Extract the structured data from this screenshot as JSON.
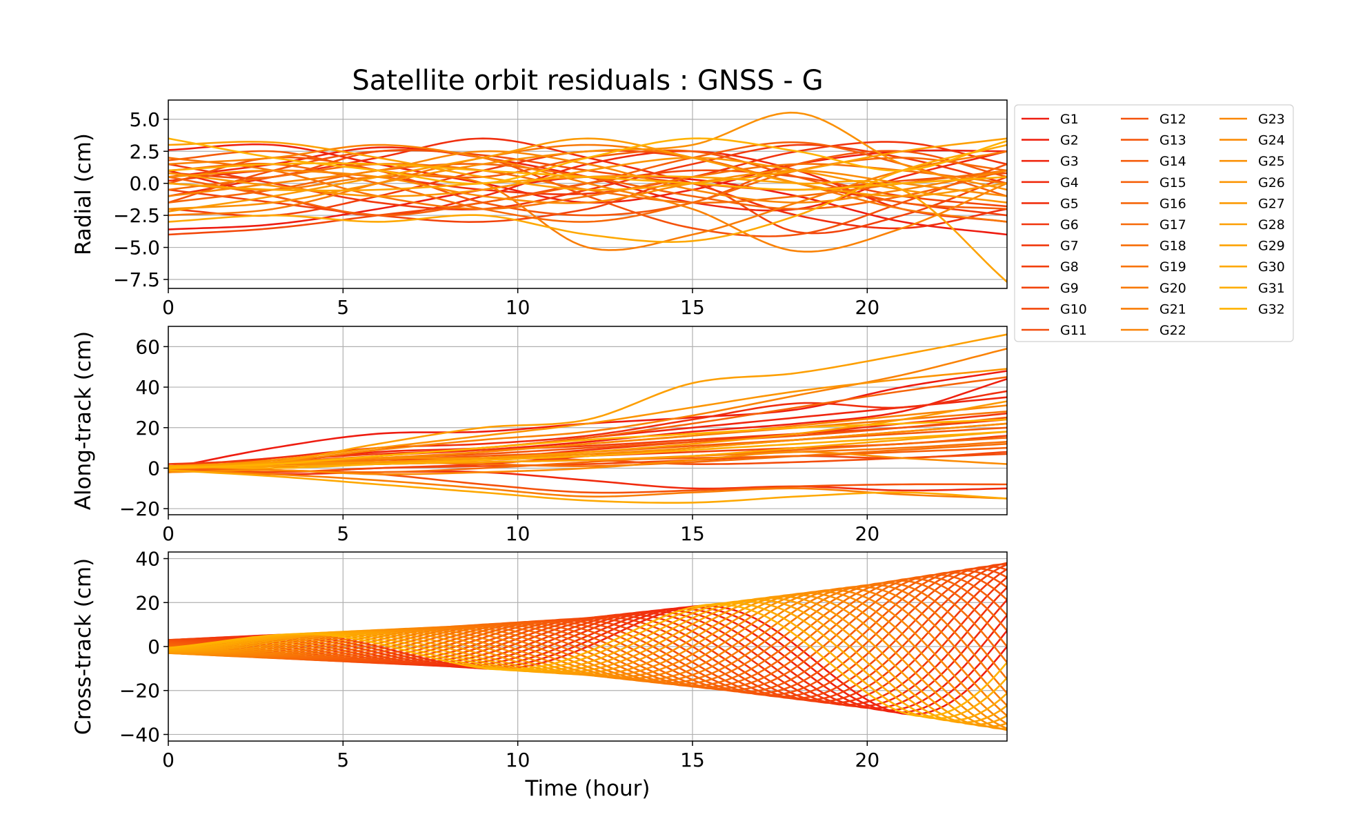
{
  "chart_data": {
    "type": "line",
    "title": "Satellite orbit residuals : GNSS - G",
    "xlabel": "Time (hour)",
    "xlim": [
      0,
      24
    ],
    "xticks": [
      0,
      5,
      10,
      15,
      20
    ],
    "grid": true,
    "legend_position": "right, outside plot",
    "colors": {
      "first": "#ee1c10",
      "last": "#ffb200"
    },
    "satellites": [
      "G1",
      "G2",
      "G3",
      "G4",
      "G5",
      "G6",
      "G7",
      "G8",
      "G9",
      "G10",
      "G11",
      "G12",
      "G13",
      "G14",
      "G15",
      "G16",
      "G17",
      "G18",
      "G19",
      "G20",
      "G21",
      "G22",
      "G23",
      "G24",
      "G25",
      "G26",
      "G27",
      "G28",
      "G29",
      "G30",
      "G31",
      "G32"
    ],
    "panels": [
      {
        "ylabel": "Radial (cm)",
        "ylim": [
          -8.2,
          6.5
        ],
        "yticks": [
          5.0,
          2.5,
          0.0,
          -2.5,
          -5.0,
          -7.5
        ],
        "ytick_labels": [
          "5.0",
          "2.5",
          "0.0",
          "−2.5",
          "−5.0",
          "−7.5"
        ],
        "x": [
          0,
          3,
          6,
          9,
          12,
          15,
          18,
          21,
          24
        ],
        "series": [
          [
            -3.6,
            -3.2,
            -2.0,
            -0.5,
            0.5,
            0.3,
            -1.0,
            -3.0,
            -4.0
          ],
          [
            2.6,
            3.0,
            1.5,
            0.0,
            -1.5,
            -0.5,
            1.5,
            2.5,
            2.5
          ],
          [
            0.5,
            1.5,
            2.8,
            2.0,
            0.5,
            -1.5,
            -2.0,
            0.5,
            2.5
          ],
          [
            1.0,
            -1.0,
            -2.5,
            -1.0,
            1.5,
            2.5,
            1.0,
            -2.0,
            -3.0
          ],
          [
            -1.0,
            0.5,
            2.0,
            3.5,
            2.0,
            0.0,
            -2.5,
            -3.5,
            -2.0
          ],
          [
            0.2,
            1.0,
            0.5,
            -0.5,
            -0.8,
            0.5,
            2.5,
            3.2,
            1.5
          ],
          [
            1.5,
            0.0,
            -1.5,
            -2.0,
            -0.5,
            1.5,
            3.0,
            2.0,
            0.0
          ],
          [
            -2.0,
            -2.5,
            -1.0,
            1.0,
            2.5,
            2.0,
            0.0,
            -1.5,
            -2.5
          ],
          [
            -0.5,
            -1.5,
            -2.5,
            -3.0,
            -2.0,
            0.0,
            -3.8,
            -2.5,
            0.5
          ],
          [
            -4.0,
            -3.5,
            -2.5,
            -1.5,
            0.0,
            1.0,
            0.5,
            -1.0,
            -1.8
          ],
          [
            0.8,
            0.5,
            2.5,
            2.2,
            1.0,
            0.0,
            -0.5,
            0.2,
            0.8
          ],
          [
            -1.5,
            1.0,
            2.5,
            2.0,
            -1.0,
            -3.5,
            -4.0,
            -1.5,
            1.5
          ],
          [
            0.0,
            2.0,
            1.0,
            -1.5,
            -2.5,
            -1.5,
            1.5,
            2.5,
            0.5
          ],
          [
            1.8,
            2.5,
            1.0,
            0.5,
            2.0,
            2.5,
            0.5,
            -1.5,
            -2.0
          ],
          [
            0.5,
            -1.0,
            -2.5,
            -1.5,
            0.0,
            2.0,
            3.2,
            1.5,
            -1.0
          ],
          [
            -1.5,
            -0.5,
            1.0,
            1.5,
            0.5,
            -1.0,
            -2.0,
            -1.0,
            1.0
          ],
          [
            1.0,
            1.5,
            0.0,
            -2.0,
            -3.0,
            -1.5,
            1.0,
            2.0,
            1.0
          ],
          [
            -0.5,
            0.5,
            1.5,
            1.0,
            -0.5,
            -1.5,
            -1.0,
            0.0,
            1.0
          ],
          [
            2.0,
            1.0,
            -1.0,
            -2.0,
            -1.0,
            0.5,
            1.5,
            1.0,
            0.0
          ],
          [
            -2.5,
            -2.0,
            0.0,
            2.0,
            3.0,
            2.0,
            0.0,
            -2.0,
            -3.0
          ],
          [
            0.0,
            -0.5,
            0.5,
            0.0,
            -5.0,
            -4.0,
            -1.5,
            1.0,
            2.5
          ],
          [
            1.5,
            2.0,
            3.0,
            2.0,
            0.0,
            -2.0,
            -5.3,
            -3.5,
            0.0
          ],
          [
            -1.0,
            0.0,
            1.0,
            2.5,
            1.5,
            -0.5,
            -1.5,
            -0.5,
            1.0
          ],
          [
            0.5,
            1.0,
            0.5,
            -1.0,
            -1.5,
            0.0,
            1.0,
            0.0,
            -1.0
          ],
          [
            -2.0,
            -1.5,
            0.0,
            1.5,
            2.5,
            3.0,
            5.5,
            1.5,
            -0.5
          ],
          [
            0.8,
            -0.2,
            -1.0,
            -0.5,
            1.0,
            2.0,
            1.0,
            -0.5,
            -1.5
          ],
          [
            -2.2,
            -1.0,
            0.5,
            2.0,
            3.5,
            2.0,
            0.0,
            -1.0,
            0.0
          ],
          [
            3.0,
            3.2,
            2.0,
            0.5,
            -0.5,
            0.0,
            1.0,
            2.5,
            3.5
          ],
          [
            0.0,
            -0.5,
            -0.5,
            0.0,
            0.5,
            0.5,
            0.0,
            -0.5,
            -7.7
          ],
          [
            -3.0,
            -2.5,
            -3.0,
            -2.5,
            -4.0,
            -4.5,
            -2.5,
            1.0,
            3.0
          ],
          [
            1.0,
            1.5,
            1.5,
            1.0,
            0.5,
            0.0,
            -0.5,
            0.0,
            0.5
          ],
          [
            3.5,
            2.0,
            1.0,
            0.0,
            2.0,
            3.5,
            2.5,
            1.0,
            3.3
          ]
        ]
      },
      {
        "ylabel": "Along-track (cm)",
        "ylim": [
          -23,
          70
        ],
        "yticks": [
          60,
          40,
          20,
          0,
          -20
        ],
        "ytick_labels": [
          "60",
          "40",
          "20",
          "0",
          "−20"
        ],
        "x": [
          0,
          3,
          6,
          9,
          12,
          15,
          18,
          21,
          24
        ],
        "series": [
          [
            0,
            10,
            17,
            18,
            22,
            25,
            29,
            40,
            48
          ],
          [
            -2,
            0,
            6,
            9,
            13,
            18,
            22,
            28,
            44
          ],
          [
            0,
            3,
            8,
            10,
            15,
            20,
            25,
            30,
            35
          ],
          [
            -1,
            -3,
            -2,
            -2,
            -6,
            -10,
            -9,
            -11,
            -10
          ],
          [
            1,
            5,
            10,
            12,
            16,
            24,
            32,
            30,
            38
          ],
          [
            0,
            2,
            4,
            5,
            9,
            13,
            17,
            22,
            27
          ],
          [
            0,
            -2,
            0,
            2,
            6,
            10,
            14,
            18,
            22
          ],
          [
            2,
            4,
            7,
            9,
            11,
            14,
            17,
            20,
            24
          ],
          [
            0,
            1,
            3,
            4,
            6,
            8,
            10,
            12,
            16
          ],
          [
            -1,
            -2,
            0,
            1,
            2,
            4,
            6,
            5,
            8
          ],
          [
            0,
            2,
            3,
            5,
            4,
            2,
            3,
            5,
            7
          ],
          [
            0,
            -1,
            -3,
            -8,
            -12,
            -11,
            -9,
            -8,
            -8
          ],
          [
            1,
            3,
            5,
            7,
            10,
            13,
            16,
            20,
            25
          ],
          [
            0,
            2,
            4,
            6,
            8,
            11,
            14,
            17,
            20
          ],
          [
            -1,
            1,
            2,
            3,
            4,
            5,
            6,
            8,
            10
          ],
          [
            0,
            3,
            6,
            10,
            15,
            22,
            30,
            38,
            45
          ],
          [
            0,
            -1,
            -2,
            0,
            3,
            6,
            9,
            12,
            15
          ],
          [
            1,
            2,
            3,
            2,
            1,
            3,
            6,
            9,
            12
          ],
          [
            0,
            1,
            2,
            3,
            4,
            6,
            8,
            10,
            13
          ],
          [
            0,
            2,
            4,
            8,
            12,
            16,
            20,
            24,
            28
          ],
          [
            -1,
            -3,
            -6,
            -10,
            -14,
            -12,
            -10,
            -13,
            -15
          ],
          [
            0,
            3,
            9,
            14,
            18,
            26,
            36,
            46,
            59
          ],
          [
            0,
            2,
            5,
            8,
            12,
            16,
            21,
            26,
            31
          ],
          [
            -2,
            -1,
            -3,
            -2,
            0,
            4,
            8,
            5,
            2
          ],
          [
            1,
            3,
            5,
            5,
            7,
            10,
            14,
            18,
            22
          ],
          [
            0,
            4,
            10,
            16,
            22,
            30,
            38,
            44,
            49
          ],
          [
            0,
            2,
            3,
            5,
            8,
            12,
            17,
            24,
            33
          ],
          [
            1,
            3,
            12,
            20,
            24,
            42,
            47,
            56,
            66
          ],
          [
            0,
            1,
            2,
            3,
            4,
            6,
            10,
            14,
            18
          ],
          [
            -1,
            -4,
            -8,
            -12,
            -16,
            -17,
            -14,
            -12,
            -15
          ],
          [
            1,
            0,
            2,
            4,
            6,
            9,
            12,
            15,
            18
          ],
          [
            0,
            2,
            6,
            10,
            14,
            17,
            20,
            22,
            24
          ]
        ]
      },
      {
        "ylabel": "Cross-track (cm)",
        "ylim": [
          -43,
          43
        ],
        "yticks": [
          40,
          20,
          0,
          -20,
          -40
        ],
        "ytick_labels": [
          "40",
          "20",
          "0",
          "−20",
          "−40"
        ],
        "note": "oscillating series; amplitude grows with time, period about 12 h",
        "amplitude_profile": {
          "x": [
            0,
            4,
            8,
            12,
            16,
            20,
            24
          ],
          "amplitude": [
            3,
            6,
            9,
            13,
            20,
            28,
            38
          ]
        },
        "series_phase_deg": [
          0,
          11,
          22,
          34,
          45,
          56,
          68,
          79,
          90,
          101,
          113,
          124,
          135,
          146,
          158,
          169,
          180,
          191,
          203,
          214,
          225,
          236,
          248,
          259,
          270,
          281,
          293,
          304,
          315,
          326,
          338,
          349
        ]
      }
    ]
  }
}
